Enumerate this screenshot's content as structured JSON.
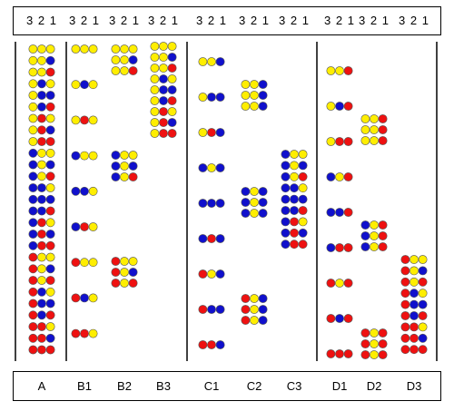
{
  "columns": [
    {
      "label": "A",
      "header": "3 2 1",
      "base": "rrr",
      "patterns": [
        "yyy",
        "yyb",
        "yyr",
        "yby",
        "ybb",
        "ybr",
        "yry",
        "yrb",
        "yrr",
        "byy",
        "byb",
        "byr",
        "bby",
        "bbb",
        "bbr",
        "bry",
        "brb",
        "brr",
        "ryy",
        "ryb",
        "ryr",
        "rby",
        "rbb",
        "rbr",
        "rry",
        "rrb",
        "rrr"
      ]
    },
    {
      "label": "B1",
      "header": "3 2 1",
      "patterns": [
        "yyy",
        "yby",
        "yry",
        "byy",
        "bby",
        "bry",
        "ryy",
        "rby",
        "rry"
      ]
    },
    {
      "label": "B2",
      "header": "3 2 1",
      "patterns": [
        "yyy",
        "yyb",
        "yyr",
        "byy",
        "byb",
        "byr",
        "ryy",
        "ryb",
        "ryr"
      ]
    },
    {
      "label": "B3",
      "header": "3 2 1",
      "patterns": [
        "yyy",
        "yyb",
        "yyr",
        "yby",
        "ybb",
        "ybr",
        "yry",
        "yrb",
        "yrr"
      ]
    },
    {
      "label": "C1",
      "header": "3 2 1",
      "patterns": [
        "yyb",
        "ybb",
        "yrb",
        "byb",
        "bbb",
        "brb",
        "ryb",
        "rbb",
        "rrb"
      ]
    },
    {
      "label": "C2",
      "header": "3 2 1",
      "patterns": [
        "yyb",
        "yyb",
        "yyb",
        "byb",
        "byb",
        "byb",
        "ryb",
        "ryb",
        "ryb"
      ]
    },
    {
      "label": "C3",
      "header": "3 2 1",
      "patterns": [
        "byy",
        "byb",
        "byr",
        "bby",
        "bbb",
        "bbr",
        "bry",
        "brb",
        "brr"
      ]
    },
    {
      "label": "D1",
      "header": "3 2 1",
      "patterns": [
        "yyr",
        "ybr",
        "yrr",
        "byr",
        "bbr",
        "brr",
        "ryr",
        "rbr",
        "rrr"
      ]
    },
    {
      "label": "D2",
      "header": "3 2 1",
      "patterns": [
        "yyr",
        "yyr",
        "yyr",
        "byr",
        "byr",
        "byr",
        "ryr",
        "ryr",
        "ryr"
      ]
    },
    {
      "label": "D3",
      "header": "3 2 1",
      "patterns": [
        "ryy",
        "ryb",
        "ryr",
        "rby",
        "rbb",
        "rbr",
        "rry",
        "rrb",
        "rrr"
      ]
    }
  ],
  "colors": {
    "y": "#ffee00",
    "b": "#1010cc",
    "r": "#ee1111",
    "outline": "#555555"
  }
}
